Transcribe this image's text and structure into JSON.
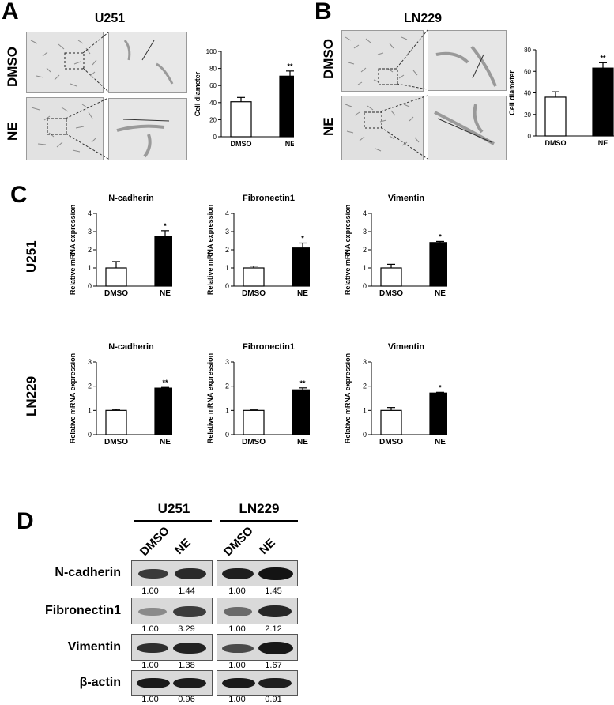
{
  "panel_letters": {
    "a": "A",
    "b": "B",
    "c": "C",
    "d": "D"
  },
  "panel_a": {
    "title": "U251",
    "row_labels": [
      "DMSO",
      "NE"
    ]
  },
  "panel_b": {
    "title": "LN229",
    "row_labels": [
      "DMSO",
      "NE"
    ]
  },
  "chart_data": [
    {
      "id": "A-bar",
      "type": "bar",
      "categories": [
        "DMSO",
        "NE"
      ],
      "values": [
        41,
        71
      ],
      "errors": [
        5,
        6
      ],
      "ylabel": "Cell diameter",
      "ylim": [
        0,
        100
      ],
      "yticks": [
        0,
        20,
        40,
        60,
        80,
        100
      ],
      "significance": [
        "",
        "**"
      ],
      "fills": [
        "#ffffff",
        "#000000"
      ]
    },
    {
      "id": "B-bar",
      "type": "bar",
      "categories": [
        "DMSO",
        "NE"
      ],
      "values": [
        36,
        63
      ],
      "errors": [
        5,
        5
      ],
      "ylabel": "Cell diameter",
      "ylim": [
        0,
        80
      ],
      "yticks": [
        0,
        20,
        40,
        60,
        80
      ],
      "significance": [
        "",
        "**"
      ],
      "fills": [
        "#ffffff",
        "#000000"
      ]
    },
    {
      "id": "C-U251-Ncad",
      "type": "bar",
      "title": "N-cadherin",
      "categories": [
        "DMSO",
        "NE"
      ],
      "values": [
        1.0,
        2.75
      ],
      "errors": [
        0.35,
        0.3
      ],
      "ylabel": "Relative mRNA expression",
      "ylim": [
        0,
        4
      ],
      "yticks": [
        0,
        1,
        2,
        3,
        4
      ],
      "significance": [
        "",
        "*"
      ],
      "fills": [
        "#ffffff",
        "#000000"
      ]
    },
    {
      "id": "C-U251-Fn1",
      "type": "bar",
      "title": "Fibronectin1",
      "categories": [
        "DMSO",
        "NE"
      ],
      "values": [
        1.0,
        2.1
      ],
      "errors": [
        0.1,
        0.27
      ],
      "ylabel": "Relative mRNA expression",
      "ylim": [
        0,
        4
      ],
      "yticks": [
        0,
        1,
        2,
        3,
        4
      ],
      "significance": [
        "",
        "*"
      ],
      "fills": [
        "#ffffff",
        "#000000"
      ]
    },
    {
      "id": "C-U251-Vim",
      "type": "bar",
      "title": "Vimentin",
      "categories": [
        "DMSO",
        "NE"
      ],
      "values": [
        1.0,
        2.4
      ],
      "errors": [
        0.2,
        0.06
      ],
      "ylabel": "Relative mRNA expression",
      "ylim": [
        0,
        4
      ],
      "yticks": [
        0,
        1,
        2,
        3,
        4
      ],
      "significance": [
        "",
        "*"
      ],
      "fills": [
        "#ffffff",
        "#000000"
      ]
    },
    {
      "id": "C-LN229-Ncad",
      "type": "bar",
      "title": "N-cadherin",
      "categories": [
        "DMSO",
        "NE"
      ],
      "values": [
        1.0,
        1.92
      ],
      "errors": [
        0.04,
        0.03
      ],
      "ylabel": "Relative mRNA expression",
      "ylim": [
        0,
        3
      ],
      "yticks": [
        0,
        1,
        2,
        3
      ],
      "significance": [
        "",
        "**"
      ],
      "fills": [
        "#ffffff",
        "#000000"
      ]
    },
    {
      "id": "C-LN229-Fn1",
      "type": "bar",
      "title": "Fibronectin1",
      "categories": [
        "DMSO",
        "NE"
      ],
      "values": [
        1.0,
        1.85
      ],
      "errors": [
        0.02,
        0.08
      ],
      "ylabel": "Relative mRNA expression",
      "ylim": [
        0,
        3
      ],
      "yticks": [
        0,
        1,
        2,
        3
      ],
      "significance": [
        "",
        "**"
      ],
      "fills": [
        "#ffffff",
        "#000000"
      ]
    },
    {
      "id": "C-LN229-Vim",
      "type": "bar",
      "title": "Vimentin",
      "categories": [
        "DMSO",
        "NE"
      ],
      "values": [
        1.0,
        1.72
      ],
      "errors": [
        0.12,
        0.03
      ],
      "ylabel": "Relative mRNA expression",
      "ylim": [
        0,
        3
      ],
      "yticks": [
        0,
        1,
        2,
        3
      ],
      "significance": [
        "",
        "*"
      ],
      "fills": [
        "#ffffff",
        "#000000"
      ]
    }
  ],
  "panel_c": {
    "row_labels": [
      "U251",
      "LN229"
    ]
  },
  "panel_d": {
    "cell_lines": [
      "U251",
      "LN229"
    ],
    "lanes": [
      "DMSO",
      "NE",
      "DMSO",
      "NE"
    ],
    "proteins": [
      {
        "name": "N-cadherin",
        "quant": [
          "1.00",
          "1.44",
          "1.00",
          "1.45"
        ]
      },
      {
        "name": "Fibronectin1",
        "quant": [
          "1.00",
          "3.29",
          "1.00",
          "2.12"
        ]
      },
      {
        "name": "Vimentin",
        "quant": [
          "1.00",
          "1.38",
          "1.00",
          "1.67"
        ]
      },
      {
        "name": "β-actin",
        "quant": [
          "1.00",
          "0.96",
          "1.00",
          "0.91"
        ]
      }
    ]
  }
}
